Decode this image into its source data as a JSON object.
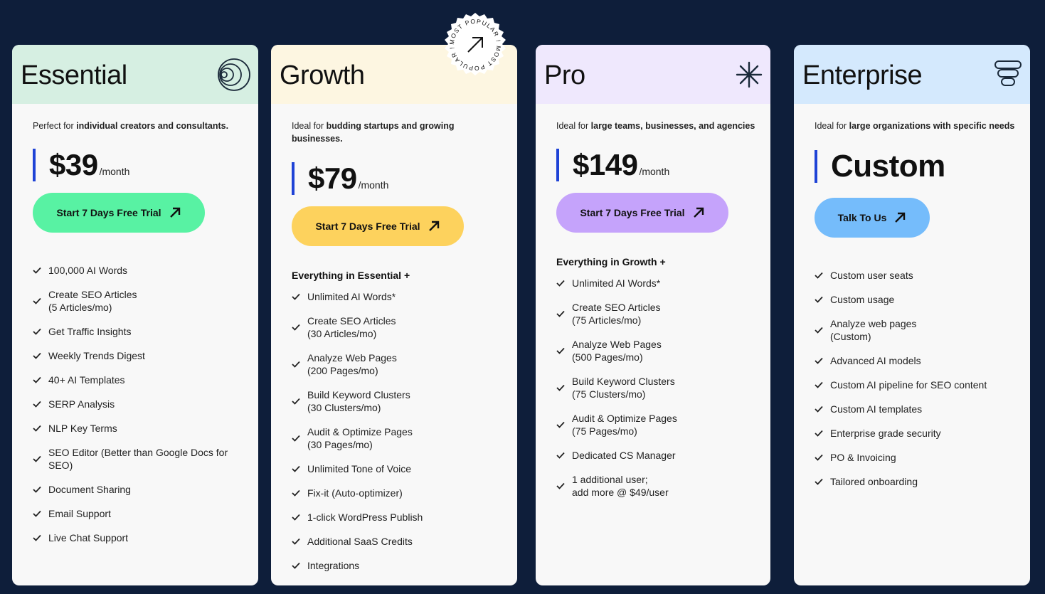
{
  "colors": {
    "background": "#0e1e3a",
    "price_bar": "#1f43d6",
    "essential_head": "#d6efe2",
    "essential_cta": "#58f2a3",
    "growth_head": "#fdf6e1",
    "growth_cta": "#fdd25d",
    "pro_head": "#efe8fd",
    "pro_cta": "#c5a3fb",
    "enterprise_head": "#d4e9fd",
    "enterprise_cta": "#75bcfb"
  },
  "badge": {
    "text": "MOST POPULAR ! MOST POPULAR ! ",
    "icon": "arrow-up-right-icon"
  },
  "plans": [
    {
      "name": "Essential",
      "icon": "concentric-circles-icon",
      "tagline_prefix": "Perfect for ",
      "tagline_bold": "individual creators and consultants.",
      "price": "$39",
      "per": "/month",
      "cta": "Start 7 Days Free Trial",
      "section_heading": "",
      "features": [
        "100,000 AI Words",
        "Create SEO Articles\n(5 Articles/mo)",
        "Get Traffic Insights",
        "Weekly Trends Digest",
        "40+ AI Templates",
        "SERP Analysis",
        "NLP Key Terms",
        "SEO Editor (Better than Google Docs for\nSEO)",
        "Document Sharing",
        "Email Support",
        "Live Chat Support"
      ]
    },
    {
      "name": "Growth",
      "icon": "",
      "tagline_prefix": "Ideal for ",
      "tagline_bold": "budding startups and growing businesses.",
      "price": "$79",
      "per": "/month",
      "cta": "Start 7 Days Free Trial",
      "section_heading": "Everything in Essential +",
      "features": [
        "Unlimited AI Words*",
        "Create SEO Articles\n(30 Articles/mo)",
        "Analyze Web Pages\n(200 Pages/mo)",
        "Build Keyword Clusters\n(30 Clusters/mo)",
        "Audit & Optimize Pages\n(30 Pages/mo)",
        "Unlimited Tone of Voice",
        "Fix-it (Auto-optimizer)",
        "1-click WordPress Publish",
        "Additional SaaS Credits",
        "Integrations"
      ]
    },
    {
      "name": "Pro",
      "icon": "asterisk-icon",
      "tagline_prefix": "Ideal for ",
      "tagline_bold": "large teams, businesses, and agencies",
      "price": "$149",
      "per": "/month",
      "cta": "Start 7 Days Free Trial",
      "section_heading": "Everything in Growth +",
      "features": [
        "Unlimited AI Words*",
        "Create SEO Articles\n(75 Articles/mo)",
        "Analyze Web Pages\n(500 Pages/mo)",
        "Build Keyword Clusters\n(75 Clusters/mo)",
        "Audit & Optimize Pages\n(75 Pages/mo)",
        "Dedicated CS Manager",
        "1 additional user;\nadd more @ $49/user"
      ]
    },
    {
      "name": "Enterprise",
      "icon": "stacked-layers-icon",
      "tagline_prefix": "Ideal for ",
      "tagline_bold": "large organizations with specific needs",
      "price": "Custom",
      "per": "",
      "cta": "Talk To Us",
      "section_heading": "",
      "features": [
        "Custom user seats",
        "Custom usage",
        "Analyze web pages\n(Custom)",
        "Advanced AI models",
        "Custom AI pipeline for SEO content",
        "Custom AI templates",
        "Enterprise grade security",
        "PO & Invoicing",
        "Tailored onboarding"
      ]
    }
  ]
}
